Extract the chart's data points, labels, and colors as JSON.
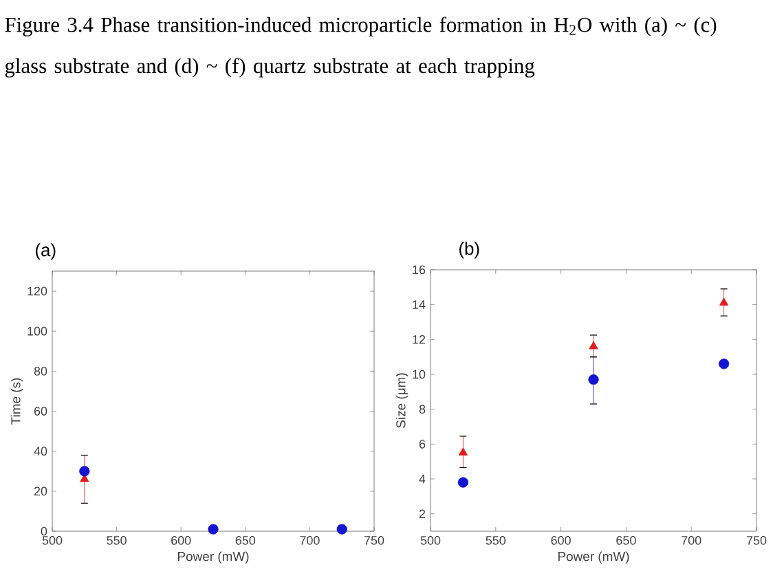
{
  "chart_data": [
    {
      "type": "scatter",
      "title": "(a)",
      "xlabel": "Power (mW)",
      "ylabel": "Time (s)",
      "annotations": [
        "Figure 3.4 Phase transition-induced microparticle formation in H$_{2}$O with (a) ~ (c) glass substrate and (d) ~ (f) quartz substrate at each trapping"
      ],
      "x": [
        525,
        625,
        725
      ],
      "xlim": [
        500,
        750
      ],
      "xticks": [
        500,
        550,
        600,
        650,
        700,
        750
      ],
      "ylim": [
        0,
        130
      ],
      "yticks": [
        0,
        20,
        40,
        60,
        80,
        100,
        120
      ],
      "grid": false,
      "legend": false,
      "series": [
        {
          "color": "#e31a1c",
          "marker": "triangle",
          "values": [
            26,
            null,
            null
          ],
          "errors": [
            [
              14,
              38
            ],
            null,
            null
          ]
        },
        {
          "color": "#1414d2",
          "marker": "circle",
          "values": [
            30,
            1,
            1
          ]
        }
      ]
    },
    {
      "type": "scatter",
      "title": "(b)",
      "xlabel": "Power (mW)",
      "ylabel": "Size (μm)",
      "x": [
        525,
        625,
        725
      ],
      "xlim": [
        500,
        750
      ],
      "xticks": [
        500,
        550,
        600,
        650,
        700,
        750
      ],
      "ylim": [
        1,
        16
      ],
      "yticks": [
        2,
        4,
        6,
        8,
        10,
        12,
        14,
        16
      ],
      "grid": false,
      "legend": false,
      "series": [
        {
          "color": "#e31a1c",
          "marker": "triangle",
          "values": [
            5.5,
            11.6,
            14.1
          ],
          "errors": [
            [
              4.65,
              6.45
            ],
            [
              11.0,
              12.25
            ],
            [
              13.35,
              14.9
            ]
          ]
        },
        {
          "color": "#1414d2",
          "marker": "circle",
          "values": [
            3.8,
            9.7,
            10.6
          ],
          "errors": [
            null,
            [
              8.3,
              11.0
            ],
            null
          ]
        }
      ]
    }
  ]
}
